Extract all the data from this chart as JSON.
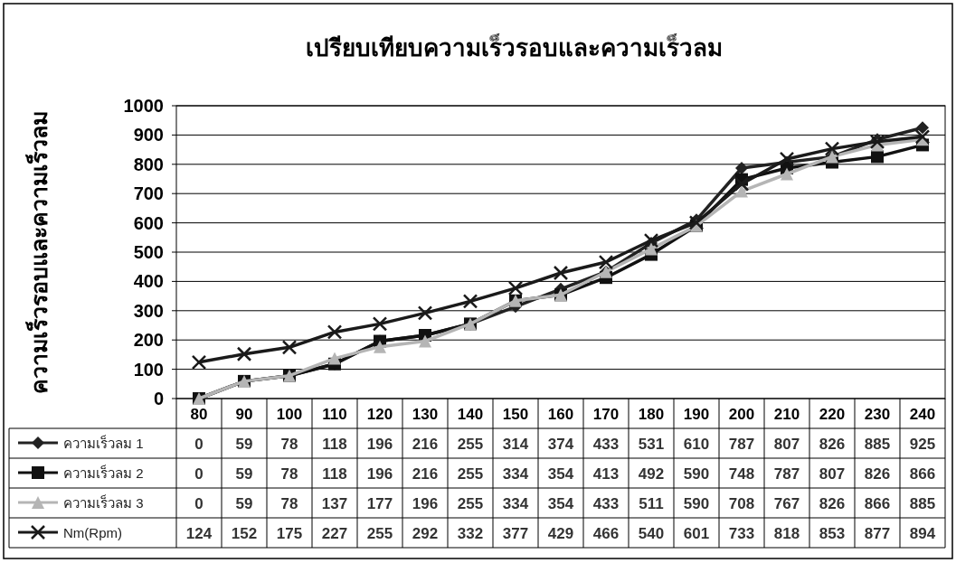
{
  "chart_data": {
    "type": "line",
    "title": "เปรียบเทียบความเร็วรอบและความเร็วลม",
    "ylabel": "ความเร็วรอบและความเร็วลม",
    "categories": [
      "80",
      "90",
      "100",
      "110",
      "120",
      "130",
      "140",
      "150",
      "160",
      "170",
      "180",
      "190",
      "200",
      "210",
      "220",
      "230",
      "240"
    ],
    "series": [
      {
        "name": "ความเร็วลม 1",
        "color": "#222222",
        "marker": "diamond",
        "values": [
          0,
          59,
          78,
          118,
          196,
          216,
          255,
          314,
          374,
          433,
          531,
          610,
          787,
          807,
          826,
          885,
          925
        ]
      },
      {
        "name": "ความเร็วลม 2",
        "color": "#111111",
        "marker": "square",
        "values": [
          0,
          59,
          78,
          118,
          196,
          216,
          255,
          334,
          354,
          413,
          492,
          590,
          748,
          787,
          807,
          826,
          866
        ]
      },
      {
        "name": "ความเร็วลม 3",
        "color": "#b5b5b5",
        "marker": "triangle",
        "values": [
          0,
          59,
          78,
          137,
          177,
          196,
          255,
          334,
          354,
          433,
          511,
          590,
          708,
          767,
          826,
          866,
          885
        ]
      },
      {
        "name": "Nm(Rpm)",
        "color": "#1a1a1a",
        "marker": "cross",
        "values": [
          124,
          152,
          175,
          227,
          255,
          292,
          332,
          377,
          429,
          466,
          540,
          601,
          733,
          818,
          853,
          877,
          894
        ]
      }
    ],
    "ylim": [
      0,
      1000
    ],
    "yticks": [
      0,
      100,
      200,
      300,
      400,
      500,
      600,
      700,
      800,
      900,
      1000
    ],
    "grid": "y",
    "data_labels": true,
    "legend": "bottom",
    "line_style": "solid"
  }
}
